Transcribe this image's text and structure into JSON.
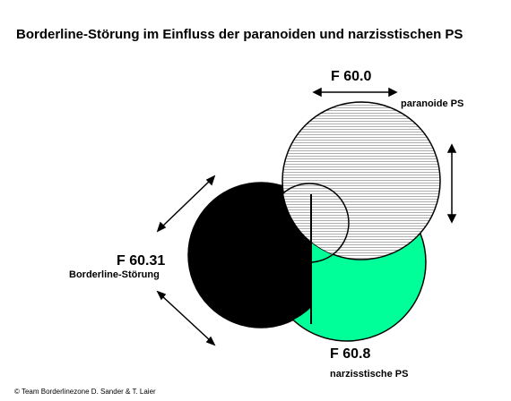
{
  "title": "Borderline-Störung im Einfluss der paranoiden und narzisstischen PS",
  "circles": {
    "paranoid": {
      "code": "F 60.0",
      "label": "paranoide PS"
    },
    "borderline": {
      "code": "F 60.31",
      "label": "Borderline-Störung"
    },
    "narcissistic": {
      "code": "F 60.8",
      "label": "narzisstische PS"
    }
  },
  "colors": {
    "borderline_fill": "#000000",
    "narcissistic_fill": "#00ff99",
    "paranoid_hatch": "#9a9a9a",
    "background": "#ffffff"
  },
  "footer": "© Team Borderlinezone D. Sander & T. Laier"
}
